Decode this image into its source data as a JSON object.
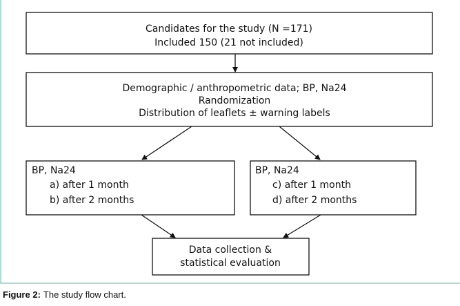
{
  "nodes": [
    {
      "lines": [
        "Candidates for the study (N =171)",
        "Included 150 (21 not included)"
      ]
    },
    {
      "lines": [
        "Demographic / anthropometric data; BP, Na24",
        "Randomization",
        "Distribution of leaflets ± warning labels"
      ]
    },
    {
      "lines": [
        "BP, Na24",
        "a)  after 1 month",
        "b)  after 2 months"
      ]
    },
    {
      "lines": [
        "BP, Na24",
        "c)  after 1 month",
        "d)  after 2 months"
      ]
    },
    {
      "lines": [
        "Data collection &",
        "statistical evaluation"
      ]
    }
  ],
  "caption": {
    "label": "Figure 2:",
    "text": "The study flow chart."
  }
}
